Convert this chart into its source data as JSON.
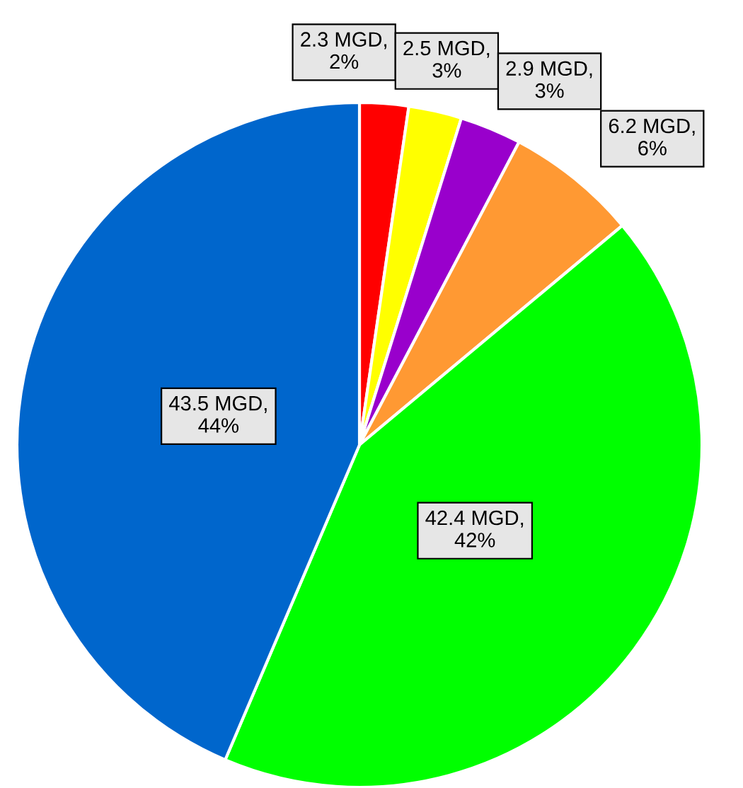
{
  "chart_data": {
    "type": "pie",
    "categories": [
      null,
      null,
      null,
      null,
      null,
      null
    ],
    "values": [
      2.3,
      2.5,
      2.9,
      6.2,
      42.4,
      43.5
    ],
    "colors": [
      "#ff0000",
      "#ffff00",
      "#9900cc",
      "#ff9933",
      "#00ff00",
      "#0066cc"
    ],
    "value_labels": [
      "2.3 MGD,\n2%",
      "2.5 MGD,\n3%",
      "2.9 MGD,\n3%",
      "6.2 MGD,\n6%",
      "42.4 MGD,\n42%",
      "43.5 MGD,\n44%"
    ]
  }
}
